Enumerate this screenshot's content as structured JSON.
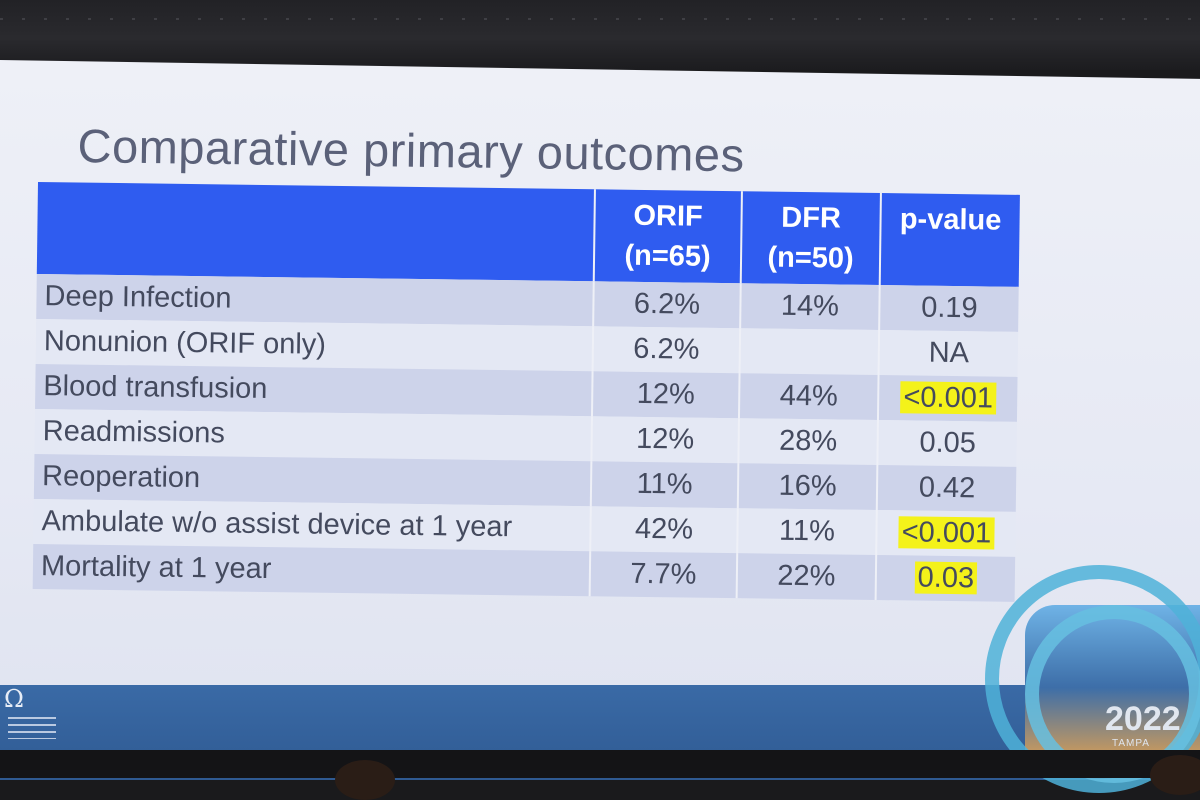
{
  "slide": {
    "title": "Comparative primary outcomes",
    "year": "2022",
    "city": "TAMPA"
  },
  "table": {
    "headers": {
      "orif_line1": "ORIF",
      "orif_line2": "(n=65)",
      "dfr_line1": "DFR",
      "dfr_line2": "(n=50)",
      "pvalue": "p-value"
    },
    "rows": [
      {
        "label": "Deep Infection",
        "orif": "6.2%",
        "dfr": "14%",
        "p": "0.19",
        "highlight": false
      },
      {
        "label": "Nonunion (ORIF only)",
        "orif": "6.2%",
        "dfr": "",
        "p": "NA",
        "highlight": false
      },
      {
        "label": "Blood transfusion",
        "orif": "12%",
        "dfr": "44%",
        "p": "<0.001",
        "highlight": true
      },
      {
        "label": "Readmissions",
        "orif": "12%",
        "dfr": "28%",
        "p": "0.05",
        "highlight": false
      },
      {
        "label": "Reoperation",
        "orif": "11%",
        "dfr": "16%",
        "p": "0.42",
        "highlight": false
      },
      {
        "label": "Ambulate w/o assist device at 1 year",
        "orif": "42%",
        "dfr": "11%",
        "p": "<0.001",
        "highlight": true
      },
      {
        "label": "Mortality at 1 year",
        "orif": "7.7%",
        "dfr": "22%",
        "p": "0.03",
        "highlight": true
      }
    ]
  },
  "colors": {
    "header_bg": "#2f5cf0",
    "band_row": "#cdd3ea",
    "plain_row": "#e4e8f4",
    "highlight": "#f4f21a",
    "footer": "#3a6aa6"
  },
  "icons": {
    "logo": "association-logo-icon",
    "emblem": "conference-emblem-icon"
  }
}
